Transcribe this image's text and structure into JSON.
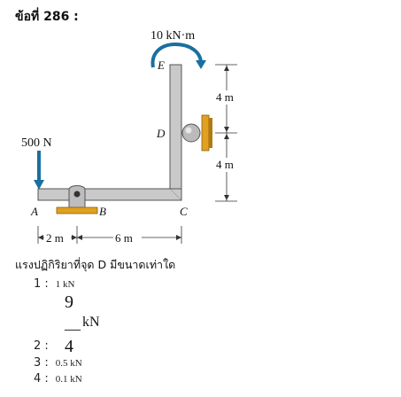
{
  "question_label": "ข้อที่ 286 :",
  "figure": {
    "moment_label": "10 kN·m",
    "force_label": "500 N",
    "points": {
      "A": "A",
      "B": "B",
      "C": "C",
      "D": "D",
      "E": "E"
    },
    "dim_right_upper": "4 m",
    "dim_right_lower": "4 m",
    "dim_bottom_left": "2 m",
    "dim_bottom_right": "6 m",
    "colors": {
      "arrow": "#1a6fa0",
      "support": "#e0a020",
      "frame": "#c9c9c9"
    }
  },
  "question_text": "แรงปฏิกิริยาที่จุด D มีขนาดเท่าใด",
  "options": [
    {
      "num": "1 :",
      "text": "1 kN"
    },
    {
      "num": "2 :",
      "numerator": "9",
      "bar": "—",
      "unit": "kN",
      "denominator": "4"
    },
    {
      "num": "3 :",
      "text": "0.5 kN"
    },
    {
      "num": "4 :",
      "text": "0.1 kN"
    }
  ]
}
